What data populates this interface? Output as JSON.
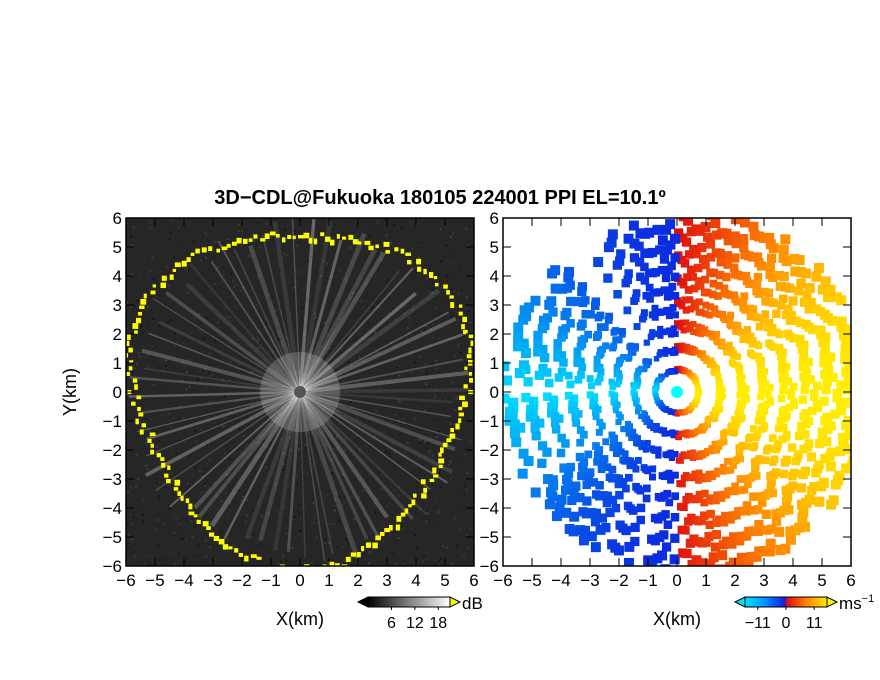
{
  "title": "3D−CDL@Fukuoka 180105 224001 PPI EL=10.1º",
  "chart_data": [
    {
      "type": "heatmap",
      "panel": "left",
      "quantity": "radar reflectivity (SNR)",
      "xlabel": "X(km)",
      "ylabel": "Y(km)",
      "xlim": [
        -6,
        6
      ],
      "ylim": [
        -6,
        6
      ],
      "xticks": [
        "−6",
        "−5",
        "−4",
        "−3",
        "−2",
        "−1",
        "0",
        "1",
        "2",
        "3",
        "4",
        "5",
        "6"
      ],
      "yticks": [
        "6",
        "5",
        "4",
        "3",
        "2",
        "1",
        "0",
        "−1",
        "−2",
        "−3",
        "−4",
        "−5",
        "−6"
      ],
      "colormap": "gray (black→white), highest values yellow",
      "colorbar": {
        "unit": "dB",
        "ticks": [
          "6",
          "12",
          "18"
        ],
        "range": [
          0,
          21
        ]
      },
      "colors": {
        "background": "#262626",
        "high": "#ffff00",
        "station": "#555555"
      }
    },
    {
      "type": "heatmap",
      "panel": "right",
      "quantity": "Doppler radial velocity",
      "xlabel": "X(km)",
      "xlim": [
        -6,
        6
      ],
      "ylim": [
        -6,
        6
      ],
      "xticks": [
        "−6",
        "−5",
        "−4",
        "−3",
        "−2",
        "−1",
        "0",
        "1",
        "2",
        "3",
        "4",
        "5",
        "6"
      ],
      "yticks": [
        "6",
        "5",
        "4",
        "3",
        "2",
        "1",
        "0",
        "−1",
        "−2",
        "−3",
        "−4",
        "−5",
        "−6"
      ],
      "colormap": "cyan→blue (negative), red→orange→yellow (positive)",
      "colorbar": {
        "unit": "ms",
        "unit_exp": "−1",
        "ticks": [
          "−11",
          "0",
          "11"
        ],
        "range": [
          -16,
          16
        ]
      },
      "colors": {
        "negative_near": "#00e0ff",
        "negative_far": "#0a2ce0",
        "positive_near": "#e01010",
        "positive_far": "#ffee00",
        "station": "#00ffff"
      }
    }
  ]
}
